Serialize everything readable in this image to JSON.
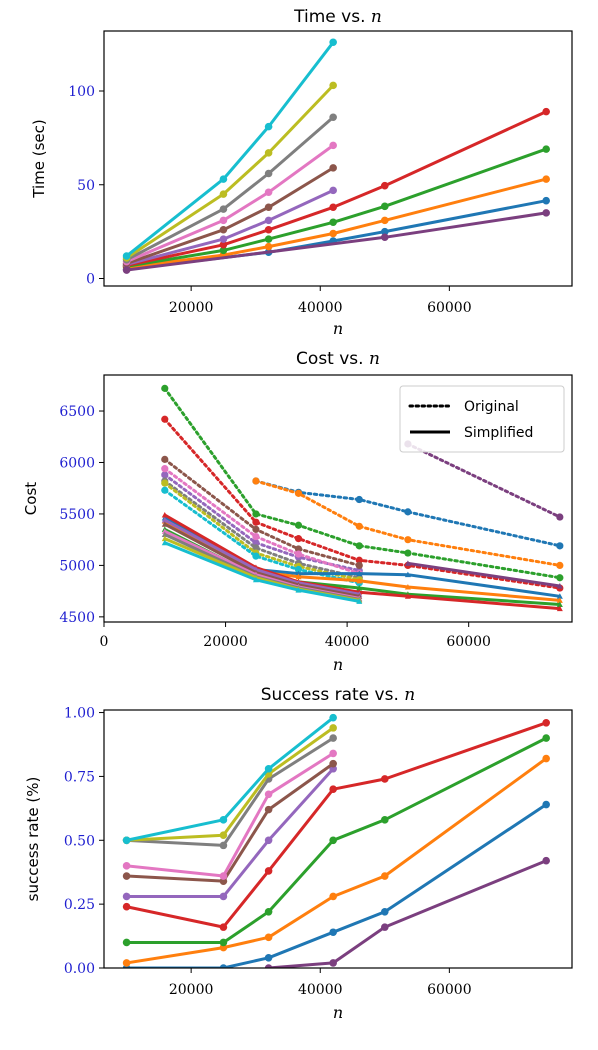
{
  "palette": [
    "#1f77b4",
    "#ff7f0e",
    "#2ca02c",
    "#d62728",
    "#9467bd",
    "#8c564b",
    "#e377c2",
    "#7f7f7f",
    "#bcbd22",
    "#17becf",
    "#7b3f7f"
  ],
  "chart_data": [
    {
      "type": "line",
      "title": "Time vs. ",
      "title_var": "n",
      "xlabel": "n",
      "ylabel": "Time (sec)",
      "xlim": [
        6500,
        79000
      ],
      "ylim": [
        -4,
        132
      ],
      "xticks": [
        20000,
        40000,
        60000
      ],
      "yticks": [
        0,
        50,
        100
      ],
      "series": [
        {
          "x": [
            10000,
            32000,
            42000,
            50000,
            75000
          ],
          "y": [
            5,
            14,
            20,
            25,
            41.5
          ]
        },
        {
          "x": [
            10000,
            25000,
            32000,
            42000,
            50000,
            75000
          ],
          "y": [
            6,
            12.5,
            17,
            24,
            31,
            53
          ]
        },
        {
          "x": [
            10000,
            25000,
            32000,
            42000,
            50000,
            75000
          ],
          "y": [
            6.5,
            15,
            21,
            30,
            38.5,
            69
          ]
        },
        {
          "x": [
            10000,
            25000,
            32000,
            42000,
            50000,
            75000
          ],
          "y": [
            7,
            18,
            26,
            38,
            49.5,
            89
          ]
        },
        {
          "x": [
            10000,
            25000,
            32000,
            42000
          ],
          "y": [
            7.5,
            21,
            31,
            47
          ]
        },
        {
          "x": [
            10000,
            25000,
            32000,
            42000
          ],
          "y": [
            8,
            26,
            38,
            59
          ]
        },
        {
          "x": [
            10000,
            25000,
            32000,
            42000
          ],
          "y": [
            9,
            31,
            46,
            71
          ]
        },
        {
          "x": [
            10000,
            25000,
            32000,
            42000
          ],
          "y": [
            10,
            37,
            56,
            86
          ]
        },
        {
          "x": [
            10000,
            25000,
            32000,
            42000
          ],
          "y": [
            11,
            45,
            67,
            103
          ]
        },
        {
          "x": [
            10000,
            25000,
            32000,
            42000
          ],
          "y": [
            12,
            53,
            81,
            126
          ]
        },
        {
          "x": [
            10000,
            50000,
            75000
          ],
          "y": [
            4.5,
            22,
            35
          ]
        }
      ]
    },
    {
      "type": "line",
      "title": "Cost vs. ",
      "title_var": "n",
      "xlabel": "n",
      "ylabel": "Cost",
      "xlim": [
        0,
        77000
      ],
      "ylim": [
        4450,
        6850
      ],
      "xticks": [
        0,
        20000,
        40000,
        60000
      ],
      "yticks": [
        4500,
        5000,
        5500,
        6000,
        6500
      ],
      "legend": {
        "position": "top-right",
        "entries": [
          "Original",
          "Simplified"
        ]
      },
      "original": [
        {
          "x": [
            25000,
            32000,
            42000,
            50000,
            75000
          ],
          "y": [
            5820,
            5710,
            5640,
            5520,
            5190
          ]
        },
        {
          "x": [
            25000,
            32000,
            42000,
            50000,
            75000
          ],
          "y": [
            5820,
            5700,
            5380,
            5250,
            5000
          ]
        },
        {
          "x": [
            10000,
            25000,
            32000,
            42000,
            50000,
            75000
          ],
          "y": [
            6720,
            5500,
            5390,
            5190,
            5120,
            4880
          ]
        },
        {
          "x": [
            10000,
            25000,
            32000,
            42000,
            50000,
            75000
          ],
          "y": [
            6420,
            5420,
            5260,
            5050,
            5000,
            4780
          ]
        },
        {
          "x": [
            10000,
            25000,
            32000,
            42000
          ],
          "y": [
            5880,
            5220,
            5080,
            4950
          ]
        },
        {
          "x": [
            10000,
            25000,
            32000,
            42000
          ],
          "y": [
            6030,
            5350,
            5160,
            5000
          ]
        },
        {
          "x": [
            10000,
            25000,
            32000,
            42000
          ],
          "y": [
            5940,
            5280,
            5110,
            4920
          ]
        },
        {
          "x": [
            10000,
            25000,
            32000,
            42000
          ],
          "y": [
            5820,
            5170,
            5020,
            4880
          ]
        },
        {
          "x": [
            10000,
            25000,
            32000,
            42000
          ],
          "y": [
            5800,
            5120,
            4990,
            4860
          ]
        },
        {
          "x": [
            10000,
            25000,
            32000,
            42000
          ],
          "y": [
            5730,
            5090,
            4960,
            4830
          ]
        },
        {
          "x": [
            50000,
            75000
          ],
          "y": [
            6180,
            5470
          ]
        }
      ],
      "simplified": [
        {
          "x": [
            10000,
            25000,
            32000,
            42000,
            50000,
            75000
          ],
          "y": [
            5460,
            4960,
            4920,
            4920,
            4910,
            4700
          ]
        },
        {
          "x": [
            10000,
            25000,
            32000,
            42000,
            50000,
            75000
          ],
          "y": [
            5430,
            4940,
            4890,
            4850,
            4790,
            4660
          ]
        },
        {
          "x": [
            10000,
            25000,
            32000,
            42000,
            50000,
            75000
          ],
          "y": [
            5350,
            4900,
            4840,
            4780,
            4720,
            4620
          ]
        },
        {
          "x": [
            10000,
            25000,
            32000,
            42000,
            50000,
            75000
          ],
          "y": [
            5490,
            4980,
            4840,
            4740,
            4700,
            4580
          ]
        },
        {
          "x": [
            10000,
            25000,
            32000,
            42000
          ],
          "y": [
            5440,
            4960,
            4830,
            4720
          ]
        },
        {
          "x": [
            10000,
            25000,
            32000,
            42000
          ],
          "y": [
            5400,
            4930,
            4810,
            4700
          ]
        },
        {
          "x": [
            10000,
            25000,
            32000,
            42000
          ],
          "y": [
            5330,
            4910,
            4790,
            4680
          ]
        },
        {
          "x": [
            10000,
            25000,
            32000,
            42000
          ],
          "y": [
            5300,
            4890,
            4780,
            4670
          ]
        },
        {
          "x": [
            10000,
            25000,
            32000,
            42000
          ],
          "y": [
            5260,
            4880,
            4770,
            4660
          ]
        },
        {
          "x": [
            10000,
            25000,
            32000,
            42000
          ],
          "y": [
            5220,
            4860,
            4760,
            4650
          ]
        },
        {
          "x": [
            50000,
            75000
          ],
          "y": [
            5020,
            4800
          ]
        }
      ]
    },
    {
      "type": "line",
      "title": "Success rate vs. ",
      "title_var": "n",
      "xlabel": "n",
      "ylabel": "success rate (%)",
      "xlim": [
        6500,
        79000
      ],
      "ylim": [
        0,
        1.01
      ],
      "xticks": [
        20000,
        40000,
        60000
      ],
      "yticks": [
        0.0,
        0.25,
        0.5,
        0.75,
        1.0
      ],
      "ytick_labels": [
        "0.00",
        "0.25",
        "0.50",
        "0.75",
        "1.00"
      ],
      "series": [
        {
          "x": [
            10000,
            25000,
            32000,
            42000,
            50000,
            75000
          ],
          "y": [
            0.0,
            0.0,
            0.04,
            0.14,
            0.22,
            0.64
          ]
        },
        {
          "x": [
            10000,
            25000,
            32000,
            42000,
            50000,
            75000
          ],
          "y": [
            0.02,
            0.08,
            0.12,
            0.28,
            0.36,
            0.82
          ]
        },
        {
          "x": [
            10000,
            25000,
            32000,
            42000,
            50000,
            75000
          ],
          "y": [
            0.1,
            0.1,
            0.22,
            0.5,
            0.58,
            0.9
          ]
        },
        {
          "x": [
            10000,
            25000,
            32000,
            42000,
            50000,
            75000
          ],
          "y": [
            0.24,
            0.16,
            0.38,
            0.7,
            0.74,
            0.96
          ]
        },
        {
          "x": [
            10000,
            25000,
            32000,
            42000
          ],
          "y": [
            0.28,
            0.28,
            0.5,
            0.78
          ]
        },
        {
          "x": [
            10000,
            25000,
            32000,
            42000
          ],
          "y": [
            0.36,
            0.34,
            0.62,
            0.8
          ]
        },
        {
          "x": [
            10000,
            25000,
            32000,
            42000
          ],
          "y": [
            0.4,
            0.36,
            0.68,
            0.84
          ]
        },
        {
          "x": [
            10000,
            25000,
            32000,
            42000
          ],
          "y": [
            0.5,
            0.48,
            0.74,
            0.9
          ]
        },
        {
          "x": [
            10000,
            25000,
            32000,
            42000
          ],
          "y": [
            0.5,
            0.52,
            0.76,
            0.94
          ]
        },
        {
          "x": [
            10000,
            25000,
            32000,
            42000
          ],
          "y": [
            0.5,
            0.58,
            0.78,
            0.98
          ]
        },
        {
          "x": [
            32000,
            42000,
            50000,
            75000
          ],
          "y": [
            0.0,
            0.02,
            0.16,
            0.42
          ]
        }
      ]
    }
  ]
}
